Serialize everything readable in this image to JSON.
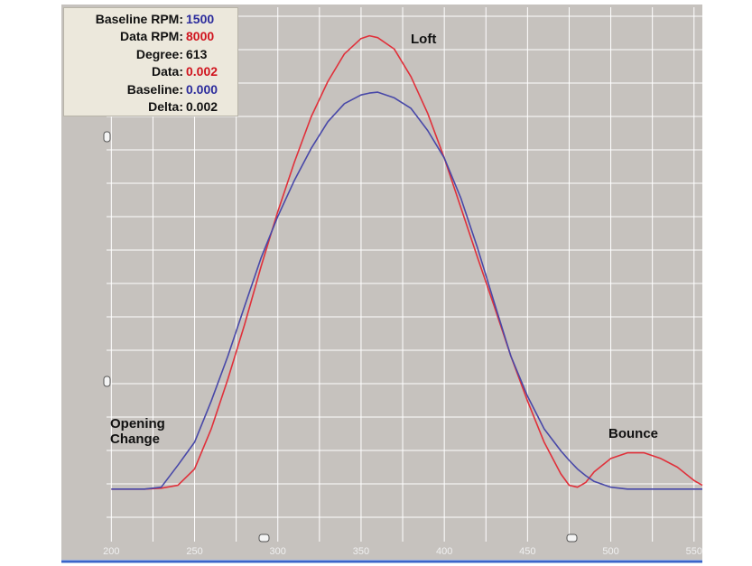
{
  "info_box": {
    "rows": [
      {
        "label": "Baseline RPM",
        "value": "1500",
        "color": "#2b2b9c"
      },
      {
        "label": "Data RPM",
        "value": "8000",
        "color": "#d0141e"
      },
      {
        "label": "Degree",
        "value": "613",
        "color": "#111111"
      },
      {
        "label": "Data",
        "value": "0.002",
        "color": "#d0141e"
      },
      {
        "label": "Baseline",
        "value": "0.000",
        "color": "#2b2b9c"
      },
      {
        "label": "Delta",
        "value": "0.002",
        "color": "#111111"
      }
    ]
  },
  "chart_data": {
    "type": "line",
    "annotations": [
      "Loft",
      "Opening Change",
      "Bounce"
    ],
    "x": [
      200,
      210,
      220,
      230,
      240,
      250,
      260,
      270,
      280,
      290,
      300,
      310,
      320,
      330,
      340,
      350,
      355,
      360,
      370,
      380,
      390,
      400,
      410,
      420,
      430,
      440,
      450,
      460,
      470,
      475,
      480,
      485,
      490,
      500,
      510,
      520,
      530,
      540,
      550,
      555
    ],
    "series": [
      {
        "color": "#e0303a",
        "values": [
          0,
          0,
          0,
          0.001,
          0.004,
          0.021,
          0.063,
          0.115,
          0.172,
          0.233,
          0.29,
          0.342,
          0.389,
          0.426,
          0.455,
          0.471,
          0.474,
          0.472,
          0.46,
          0.431,
          0.393,
          0.346,
          0.294,
          0.242,
          0.191,
          0.139,
          0.092,
          0.049,
          0.016,
          0.004,
          0.002,
          0.007,
          0.018,
          0.032,
          0.038,
          0.038,
          0.032,
          0.023,
          0.009,
          0.004
        ]
      },
      {
        "color": "#4848a8",
        "values": [
          0,
          0,
          0,
          0.002,
          0.025,
          0.049,
          0.092,
          0.139,
          0.191,
          0.242,
          0.285,
          0.323,
          0.356,
          0.384,
          0.403,
          0.412,
          0.414,
          0.415,
          0.409,
          0.398,
          0.375,
          0.346,
          0.304,
          0.252,
          0.195,
          0.139,
          0.097,
          0.063,
          0.04,
          0.03,
          0.021,
          0.014,
          0.008,
          0.002,
          0,
          0,
          0,
          0,
          0,
          0
        ]
      }
    ],
    "xlim": [
      170,
      555
    ],
    "ylim": [
      -0.07,
      0.5
    ],
    "xticks": [
      200,
      250,
      300,
      350,
      400,
      450,
      500,
      550
    ],
    "grid": true
  }
}
